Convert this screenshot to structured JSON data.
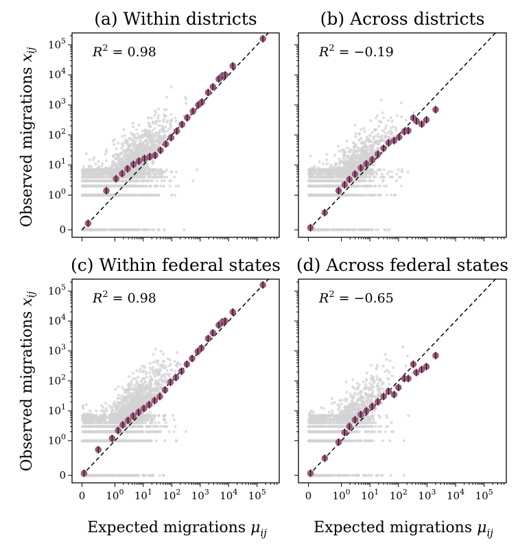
{
  "figure": {
    "ylabel": "Observed migrations",
    "ylabel_symbol": "x",
    "ylabel_sub": "ij",
    "xlabel": "Expected migrations",
    "xlabel_symbol": "μ",
    "xlabel_sub": "ij"
  },
  "chart_data": [
    {
      "type": "scatter",
      "title": "(a) Within districts",
      "r2_label": "R",
      "r2_exp": "2",
      "r2_value": "= 0.98",
      "x_scale": "symlog",
      "y_scale": "symlog",
      "xlim": [
        -0.6,
        600000
      ],
      "ylim": [
        -0.4,
        250000
      ],
      "x_ticks": [
        {
          "value": 0,
          "label": "0",
          "exp": ""
        },
        {
          "value": 1,
          "label": "10",
          "exp": "0"
        },
        {
          "value": 10,
          "label": "10",
          "exp": "1"
        },
        {
          "value": 100,
          "label": "10",
          "exp": "2"
        },
        {
          "value": 1000,
          "label": "10",
          "exp": "3"
        },
        {
          "value": 10000,
          "label": "10",
          "exp": "4"
        },
        {
          "value": 100000,
          "label": "10",
          "exp": "5"
        }
      ],
      "y_ticks": [
        {
          "value": 0,
          "label": "0",
          "exp": ""
        },
        {
          "value": 1,
          "label": "10",
          "exp": "0"
        },
        {
          "value": 10,
          "label": "10",
          "exp": "1"
        },
        {
          "value": 100,
          "label": "10",
          "exp": "2"
        },
        {
          "value": 1000,
          "label": "10",
          "exp": "3"
        },
        {
          "value": 10000,
          "label": "10",
          "exp": "4"
        },
        {
          "value": 100000,
          "label": "10",
          "exp": "5"
        }
      ],
      "show_x_tick_labels": false,
      "show_y_tick_labels": true,
      "reference_line": "y = x",
      "binned_means": [
        {
          "x": 0.15,
          "y": 0.15
        },
        {
          "x": 0.6,
          "y": 1.4
        },
        {
          "x": 1.1,
          "y": 3.5
        },
        {
          "x": 1.8,
          "y": 5.2
        },
        {
          "x": 2.8,
          "y": 7.5
        },
        {
          "x": 4.5,
          "y": 10.5
        },
        {
          "x": 7,
          "y": 13.5
        },
        {
          "x": 11,
          "y": 16.5
        },
        {
          "x": 17,
          "y": 19
        },
        {
          "x": 26,
          "y": 21
        },
        {
          "x": 40,
          "y": 31
        },
        {
          "x": 62,
          "y": 50
        },
        {
          "x": 95,
          "y": 82
        },
        {
          "x": 150,
          "y": 135
        },
        {
          "x": 230,
          "y": 225
        },
        {
          "x": 350,
          "y": 375
        },
        {
          "x": 560,
          "y": 620
        },
        {
          "x": 860,
          "y": 1000
        },
        {
          "x": 1150,
          "y": 1250
        },
        {
          "x": 1900,
          "y": 2600
        },
        {
          "x": 2800,
          "y": 4000
        },
        {
          "x": 4500,
          "y": 7300
        },
        {
          "x": 6000,
          "y": 9300
        },
        {
          "x": 7500,
          "y": 10000
        },
        {
          "x": 14000,
          "y": 20000
        },
        {
          "x": 160000,
          "y": 160000
        }
      ],
      "cloud": {
        "n_points": 3200,
        "zero_rows_y": [
          0,
          1,
          2,
          3,
          4,
          5,
          6,
          7
        ],
        "x_range": [
          0,
          2000
        ],
        "x_median": 1.5,
        "spread": "y = x with large upward scatter at small x"
      }
    },
    {
      "type": "scatter",
      "title": "(b) Across districts",
      "r2_label": "R",
      "r2_exp": "2",
      "r2_value": "= −0.19",
      "x_scale": "symlog",
      "y_scale": "symlog",
      "xlim": [
        -0.6,
        600000
      ],
      "ylim": [
        -0.4,
        250000
      ],
      "x_ticks": [
        {
          "value": 0,
          "label": "0",
          "exp": ""
        },
        {
          "value": 1,
          "label": "10",
          "exp": "0"
        },
        {
          "value": 10,
          "label": "10",
          "exp": "1"
        },
        {
          "value": 100,
          "label": "10",
          "exp": "2"
        },
        {
          "value": 1000,
          "label": "10",
          "exp": "3"
        },
        {
          "value": 10000,
          "label": "10",
          "exp": "4"
        },
        {
          "value": 100000,
          "label": "10",
          "exp": "5"
        }
      ],
      "y_ticks": [
        {
          "value": 0,
          "label": "0",
          "exp": ""
        },
        {
          "value": 1,
          "label": "10",
          "exp": "0"
        },
        {
          "value": 10,
          "label": "10",
          "exp": "1"
        },
        {
          "value": 100,
          "label": "10",
          "exp": "2"
        },
        {
          "value": 1000,
          "label": "10",
          "exp": "3"
        },
        {
          "value": 10000,
          "label": "10",
          "exp": "4"
        },
        {
          "value": 100000,
          "label": "10",
          "exp": "5"
        }
      ],
      "show_x_tick_labels": false,
      "show_y_tick_labels": false,
      "reference_line": "y = x",
      "binned_means": [
        {
          "x": 0.05,
          "y": 0.05
        },
        {
          "x": 0.4,
          "y": 0.4
        },
        {
          "x": 0.8,
          "y": 1.4
        },
        {
          "x": 1.3,
          "y": 2.2
        },
        {
          "x": 1.9,
          "y": 3.3
        },
        {
          "x": 3,
          "y": 5
        },
        {
          "x": 4.8,
          "y": 8
        },
        {
          "x": 7.5,
          "y": 11
        },
        {
          "x": 12,
          "y": 15
        },
        {
          "x": 19,
          "y": 23
        },
        {
          "x": 30,
          "y": 36
        },
        {
          "x": 45,
          "y": 55
        },
        {
          "x": 70,
          "y": 65
        },
        {
          "x": 105,
          "y": 85
        },
        {
          "x": 160,
          "y": 130
        },
        {
          "x": 220,
          "y": 140
        },
        {
          "x": 330,
          "y": 370
        },
        {
          "x": 430,
          "y": 290
        },
        {
          "x": 650,
          "y": 230
        },
        {
          "x": 950,
          "y": 320
        },
        {
          "x": 2000,
          "y": 700
        }
      ],
      "cloud": {
        "n_points": 2400,
        "zero_rows_y": [
          0,
          1,
          2,
          3,
          4,
          5,
          6,
          7
        ],
        "x_range": [
          0,
          500
        ],
        "x_median": 1.0,
        "spread": "y = x with upward scatter"
      }
    },
    {
      "type": "scatter",
      "title": "(c) Within federal states",
      "r2_label": "R",
      "r2_exp": "2",
      "r2_value": "= 0.98",
      "x_scale": "symlog",
      "y_scale": "symlog",
      "xlim": [
        -0.6,
        600000
      ],
      "ylim": [
        -0.4,
        250000
      ],
      "x_ticks": [
        {
          "value": 0,
          "label": "0",
          "exp": ""
        },
        {
          "value": 1,
          "label": "10",
          "exp": "0"
        },
        {
          "value": 10,
          "label": "10",
          "exp": "1"
        },
        {
          "value": 100,
          "label": "10",
          "exp": "2"
        },
        {
          "value": 1000,
          "label": "10",
          "exp": "3"
        },
        {
          "value": 10000,
          "label": "10",
          "exp": "4"
        },
        {
          "value": 100000,
          "label": "10",
          "exp": "5"
        }
      ],
      "y_ticks": [
        {
          "value": 0,
          "label": "0",
          "exp": ""
        },
        {
          "value": 1,
          "label": "10",
          "exp": "0"
        },
        {
          "value": 10,
          "label": "10",
          "exp": "1"
        },
        {
          "value": 100,
          "label": "10",
          "exp": "2"
        },
        {
          "value": 1000,
          "label": "10",
          "exp": "3"
        },
        {
          "value": 10000,
          "label": "10",
          "exp": "4"
        },
        {
          "value": 100000,
          "label": "10",
          "exp": "5"
        }
      ],
      "show_x_tick_labels": true,
      "show_y_tick_labels": true,
      "reference_line": "y = x",
      "binned_means": [
        {
          "x": 0.05,
          "y": 0.05
        },
        {
          "x": 0.4,
          "y": 0.6
        },
        {
          "x": 0.8,
          "y": 1.2
        },
        {
          "x": 1.3,
          "y": 2.2
        },
        {
          "x": 1.9,
          "y": 3.4
        },
        {
          "x": 2.9,
          "y": 4.8
        },
        {
          "x": 4.4,
          "y": 6.7
        },
        {
          "x": 6.8,
          "y": 9
        },
        {
          "x": 10.5,
          "y": 12
        },
        {
          "x": 16,
          "y": 16
        },
        {
          "x": 25,
          "y": 22
        },
        {
          "x": 38,
          "y": 30
        },
        {
          "x": 58,
          "y": 50
        },
        {
          "x": 90,
          "y": 90
        },
        {
          "x": 140,
          "y": 130
        },
        {
          "x": 220,
          "y": 210
        },
        {
          "x": 340,
          "y": 360
        },
        {
          "x": 520,
          "y": 560
        },
        {
          "x": 820,
          "y": 950
        },
        {
          "x": 1100,
          "y": 1250
        },
        {
          "x": 1900,
          "y": 2600
        },
        {
          "x": 2800,
          "y": 4000
        },
        {
          "x": 4500,
          "y": 7300
        },
        {
          "x": 6000,
          "y": 9300
        },
        {
          "x": 7500,
          "y": 10000
        },
        {
          "x": 14000,
          "y": 20000
        },
        {
          "x": 160000,
          "y": 160000
        }
      ],
      "cloud": {
        "n_points": 3200,
        "zero_rows_y": [
          0,
          1,
          2,
          3,
          4,
          5,
          6,
          7
        ],
        "x_range": [
          0,
          2000
        ],
        "x_median": 1.5,
        "spread": "y = x with large upward scatter at small x"
      }
    },
    {
      "type": "scatter",
      "title": "(d) Across federal states",
      "r2_label": "R",
      "r2_exp": "2",
      "r2_value": "= −0.65",
      "x_scale": "symlog",
      "y_scale": "symlog",
      "xlim": [
        -0.6,
        600000
      ],
      "ylim": [
        -0.4,
        250000
      ],
      "x_ticks": [
        {
          "value": 0,
          "label": "0",
          "exp": ""
        },
        {
          "value": 1,
          "label": "10",
          "exp": "0"
        },
        {
          "value": 10,
          "label": "10",
          "exp": "1"
        },
        {
          "value": 100,
          "label": "10",
          "exp": "2"
        },
        {
          "value": 1000,
          "label": "10",
          "exp": "3"
        },
        {
          "value": 10000,
          "label": "10",
          "exp": "4"
        },
        {
          "value": 100000,
          "label": "10",
          "exp": "5"
        }
      ],
      "y_ticks": [
        {
          "value": 0,
          "label": "0",
          "exp": ""
        },
        {
          "value": 1,
          "label": "10",
          "exp": "0"
        },
        {
          "value": 10,
          "label": "10",
          "exp": "1"
        },
        {
          "value": 100,
          "label": "10",
          "exp": "2"
        },
        {
          "value": 1000,
          "label": "10",
          "exp": "3"
        },
        {
          "value": 10000,
          "label": "10",
          "exp": "4"
        },
        {
          "value": 100000,
          "label": "10",
          "exp": "5"
        }
      ],
      "show_x_tick_labels": true,
      "show_y_tick_labels": false,
      "reference_line": "y = x",
      "binned_means": [
        {
          "x": 0.05,
          "y": 0.05
        },
        {
          "x": 0.4,
          "y": 0.4
        },
        {
          "x": 0.8,
          "y": 0.9
        },
        {
          "x": 1.3,
          "y": 1.9
        },
        {
          "x": 1.9,
          "y": 3
        },
        {
          "x": 3,
          "y": 5
        },
        {
          "x": 4.8,
          "y": 7.5
        },
        {
          "x": 7.5,
          "y": 10
        },
        {
          "x": 12,
          "y": 14
        },
        {
          "x": 19,
          "y": 20
        },
        {
          "x": 30,
          "y": 30
        },
        {
          "x": 45,
          "y": 45
        },
        {
          "x": 70,
          "y": 35
        },
        {
          "x": 100,
          "y": 60
        },
        {
          "x": 160,
          "y": 120
        },
        {
          "x": 220,
          "y": 120
        },
        {
          "x": 330,
          "y": 360
        },
        {
          "x": 420,
          "y": 190
        },
        {
          "x": 650,
          "y": 240
        },
        {
          "x": 950,
          "y": 300
        },
        {
          "x": 2000,
          "y": 700
        }
      ],
      "cloud": {
        "n_points": 2000,
        "zero_rows_y": [
          0,
          1,
          2,
          3,
          4,
          5,
          6,
          7
        ],
        "x_range": [
          0,
          400
        ],
        "x_median": 0.8,
        "spread": "y = x with upward scatter"
      }
    }
  ]
}
